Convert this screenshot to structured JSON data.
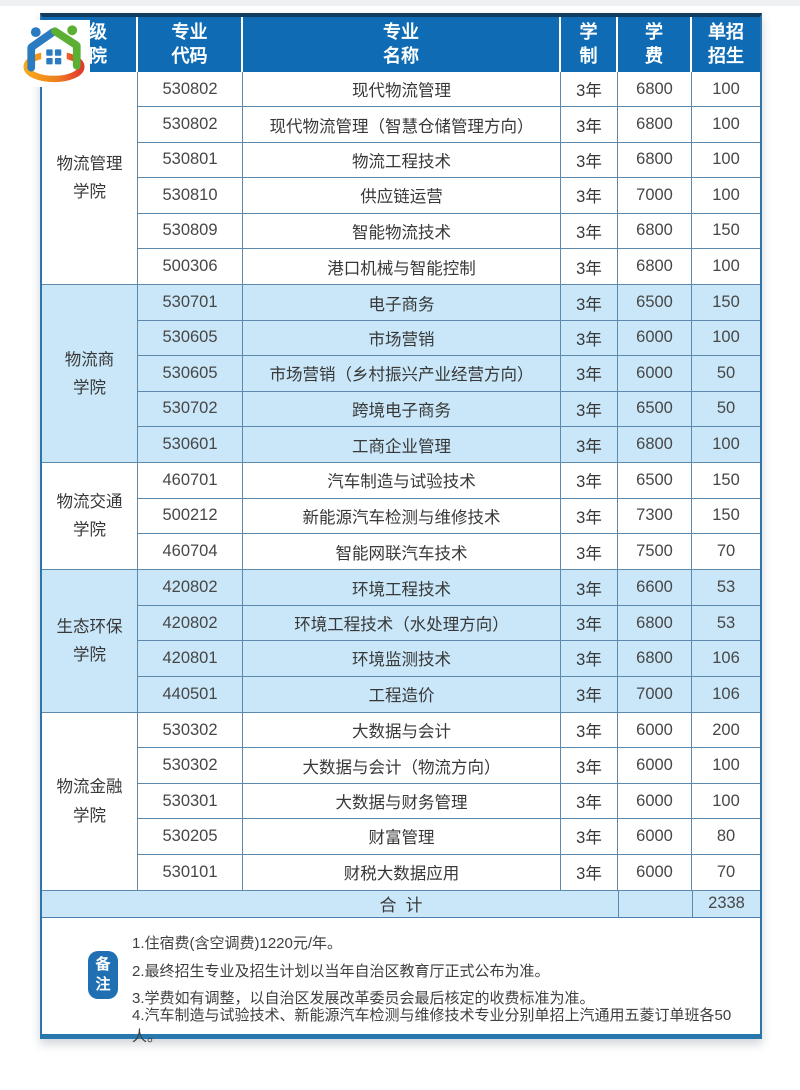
{
  "table": {
    "header": [
      "二级\n学院",
      "专业\n代码",
      "专业\n名称",
      "学\n制",
      "学\n费",
      "单招\n招生"
    ],
    "groups": [
      {
        "college": "物流管理\n学院",
        "rows": [
          [
            "530802",
            "现代物流管理",
            "3年",
            "6800",
            "100"
          ],
          [
            "530802",
            "现代物流管理（智慧仓储管理方向）",
            "3年",
            "6800",
            "100"
          ],
          [
            "530801",
            "物流工程技术",
            "3年",
            "6800",
            "100"
          ],
          [
            "530810",
            "供应链运营",
            "3年",
            "7000",
            "100"
          ],
          [
            "530809",
            "智能物流技术",
            "3年",
            "6800",
            "150"
          ],
          [
            "500306",
            "港口机械与智能控制",
            "3年",
            "6800",
            "100"
          ]
        ]
      },
      {
        "college": "物流商\n学院",
        "rows": [
          [
            "530701",
            "电子商务",
            "3年",
            "6500",
            "150"
          ],
          [
            "530605",
            "市场营销",
            "3年",
            "6000",
            "100"
          ],
          [
            "530605",
            "市场营销（乡村振兴产业经营方向）",
            "3年",
            "6000",
            "50"
          ],
          [
            "530702",
            "跨境电子商务",
            "3年",
            "6500",
            "50"
          ],
          [
            "530601",
            "工商企业管理",
            "3年",
            "6800",
            "100"
          ]
        ]
      },
      {
        "college": "物流交通\n学院",
        "rows": [
          [
            "460701",
            "汽车制造与试验技术",
            "3年",
            "6500",
            "150"
          ],
          [
            "500212",
            "新能源汽车检测与维修技术",
            "3年",
            "7300",
            "150"
          ],
          [
            "460704",
            "智能网联汽车技术",
            "3年",
            "7500",
            "70"
          ]
        ]
      },
      {
        "college": "生态环保\n学院",
        "rows": [
          [
            "420802",
            "环境工程技术",
            "3年",
            "6600",
            "53"
          ],
          [
            "420802",
            "环境工程技术（水处理方向）",
            "3年",
            "6800",
            "53"
          ],
          [
            "420801",
            "环境监测技术",
            "3年",
            "6800",
            "106"
          ],
          [
            "440501",
            "工程造价",
            "3年",
            "7000",
            "106"
          ]
        ]
      },
      {
        "college": "物流金融\n学院",
        "rows": [
          [
            "530302",
            "大数据与会计",
            "3年",
            "6000",
            "200"
          ],
          [
            "530302",
            "大数据与会计（物流方向）",
            "3年",
            "6000",
            "100"
          ],
          [
            "530301",
            "大数据与财务管理",
            "3年",
            "6000",
            "100"
          ],
          [
            "530205",
            "财富管理",
            "3年",
            "6000",
            "80"
          ],
          [
            "530101",
            "财税大数据应用",
            "3年",
            "6000",
            "70"
          ]
        ]
      }
    ],
    "total": {
      "label": "合计",
      "value": "2338"
    }
  },
  "notes": {
    "badge": "备\n注",
    "items": [
      "1.住宿费(含空调费)1220元/年。",
      "2.最终招生专业及招生计划以当年自治区教育厅正式公布为准。",
      "3.学费如有调整，以自治区发展改革委员会最后核定的收费标准为准。",
      "4.汽车制造与试验技术、新能源汽车检测与维修技术专业分别单招上汽通用五菱订单班各50人。"
    ]
  },
  "icons": {
    "logo": "people-house-swoosh-logo"
  },
  "colors": {
    "header_bg": "#0F6CB4",
    "alt_row_bg": "#C9E7F8",
    "grid_line": "#5d89ac",
    "outer_border": "#2e74ae",
    "top_border": "#123c5e",
    "bottom_border": "#2878ad",
    "badge_bg": "#1F6FB2",
    "logo_blue": "#2B7BC1",
    "logo_green": "#5BB033",
    "logo_orange": "#F39A1C"
  }
}
